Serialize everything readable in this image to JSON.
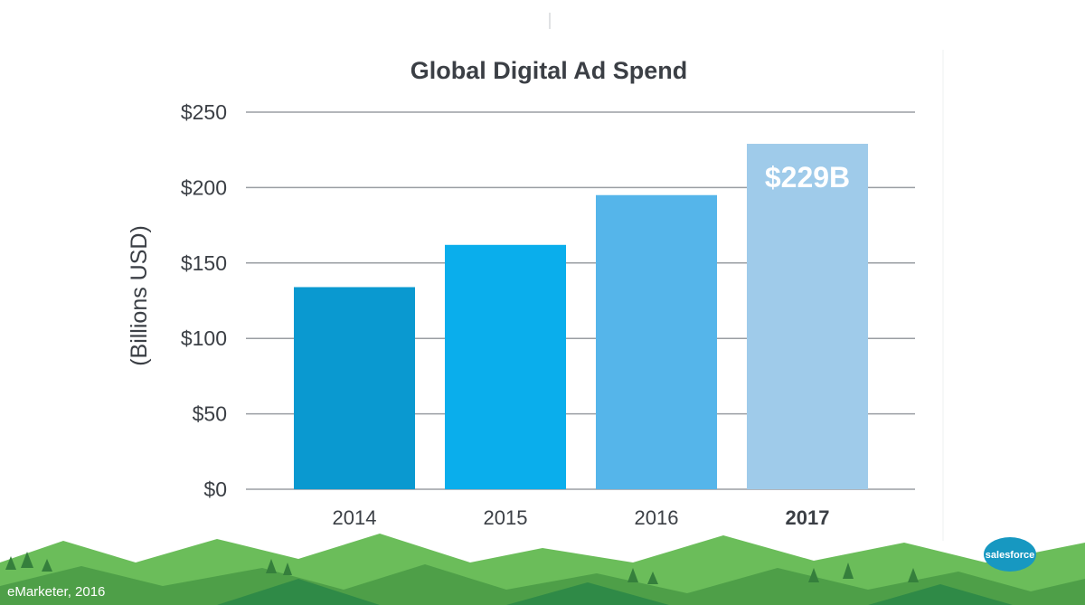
{
  "chart_data": {
    "type": "bar",
    "title": "Global Digital Ad Spend",
    "ylabel": "(Billions USD)",
    "xlabel": "",
    "categories": [
      "2014",
      "2015",
      "2016",
      "2017"
    ],
    "values": [
      134,
      162,
      195,
      229
    ],
    "highlight_category": "2017",
    "bar_colors": [
      "#0a99d0",
      "#0aaeec",
      "#55b5ea",
      "#9fcbea"
    ],
    "yticks": [
      0,
      50,
      100,
      150,
      200,
      250
    ],
    "ytick_labels": [
      "$0",
      "$50",
      "$100",
      "$150",
      "$200",
      "$250"
    ],
    "ylim": [
      0,
      250
    ],
    "grid": true,
    "annotations": [
      {
        "category": "2017",
        "text": "$229B"
      }
    ]
  },
  "footer": {
    "source": "eMarketer, 2016",
    "brand": "salesforce"
  },
  "colors": {
    "text": "#3b3f45",
    "grid": "#9a9ea3",
    "hills_light": "#6bbd5a",
    "hills_mid": "#4e9f48",
    "hills_dark": "#2f8a47",
    "trees": "#357f3c",
    "brand_blue": "#1798c1"
  }
}
